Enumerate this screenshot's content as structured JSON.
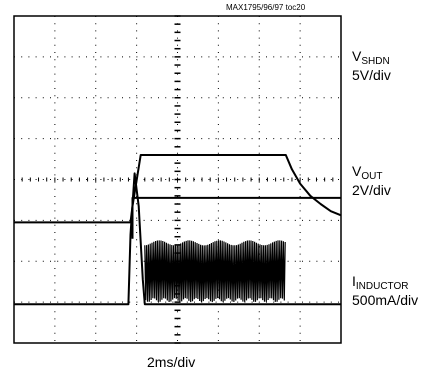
{
  "figure_id": "MAX1795/96/97 toc20",
  "timebase": "2ms/div",
  "channels": [
    {
      "name": "V",
      "sub": "SHDN",
      "scale": "5V/div"
    },
    {
      "name": "V",
      "sub": "OUT",
      "scale": "2V/div"
    },
    {
      "name": "I",
      "sub": "INDUCTOR",
      "scale": "500mA/div"
    }
  ],
  "chart_data": {
    "type": "line",
    "title": "",
    "xlabel": "2ms/div",
    "ylabel": "",
    "grid": true,
    "x_divisions": 8,
    "y_divisions": 8,
    "x_unit": "ms",
    "x_range": [
      0,
      16
    ],
    "series": [
      {
        "name": "VSHDN",
        "scale": "5V/div",
        "x": [
          5.8,
          5.8,
          16.0
        ],
        "y": [
          0,
          5,
          5
        ],
        "note": "trace begins at 5.8 ms (shutdown high), constant to end"
      },
      {
        "name": "VOUT",
        "scale": "2V/div",
        "x": [
          0,
          5.7,
          5.8,
          6.2,
          13.3,
          13.6,
          14.0,
          14.5,
          15.0,
          15.5,
          16.0
        ],
        "y": [
          0,
          0,
          0.8,
          3.3,
          3.3,
          2.6,
          1.9,
          1.3,
          0.9,
          0.55,
          0.35
        ]
      },
      {
        "name": "IINDUCTOR",
        "scale": "500mA/div",
        "x": [
          0,
          5.6,
          5.7,
          5.9,
          6.1,
          6.3,
          6.4,
          13.3,
          13.35,
          16.0
        ],
        "y": [
          0,
          0,
          850,
          1600,
          1200,
          300,
          0,
          0,
          0,
          0
        ],
        "envelope": {
          "x_start": 6.4,
          "x_end": 13.3,
          "min": 50,
          "max": 750
        }
      }
    ]
  }
}
